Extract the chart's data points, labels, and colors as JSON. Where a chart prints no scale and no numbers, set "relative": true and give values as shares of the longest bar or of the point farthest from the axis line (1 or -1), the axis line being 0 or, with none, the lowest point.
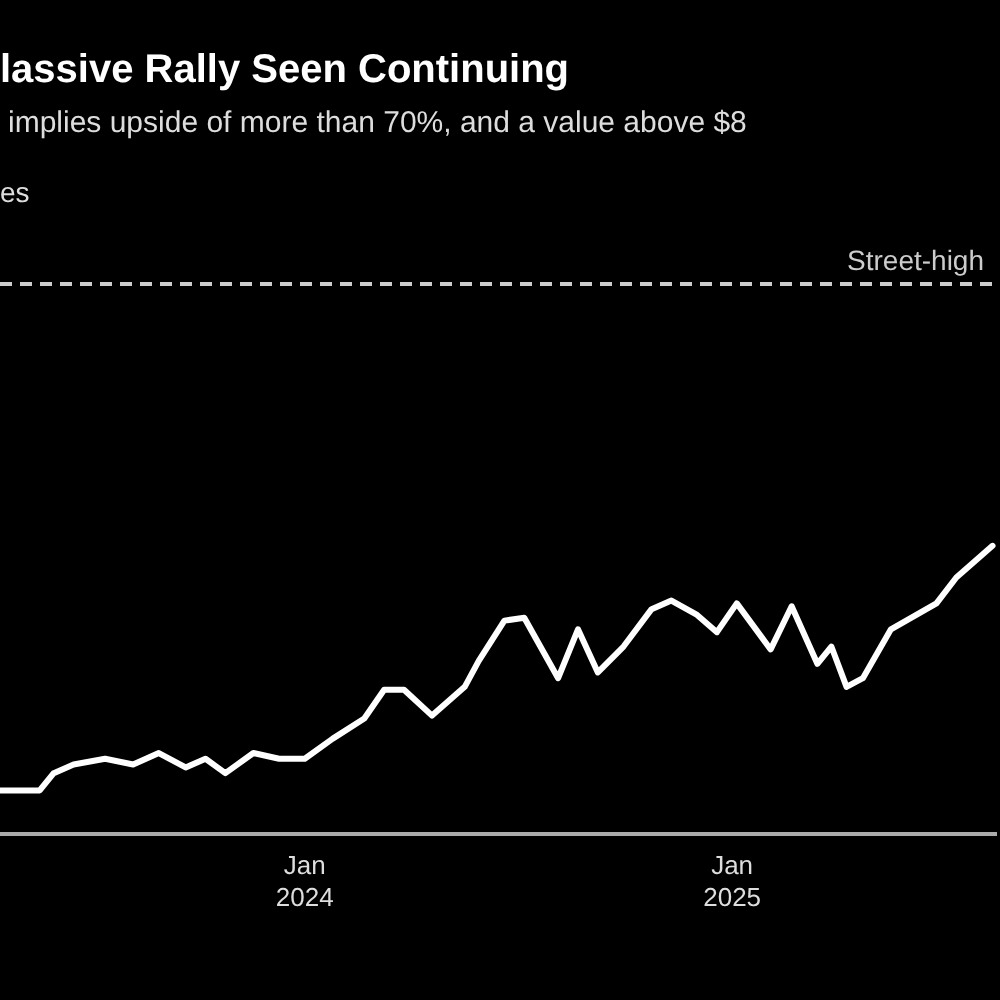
{
  "chart_data": {
    "type": "line",
    "title": "lassive Rally Seen Continuing",
    "subtitle": "implies upside of more than 70%, and a value above $8",
    "annotations": [
      "es"
    ],
    "relative": true,
    "legend": false,
    "tick_labels": "x",
    "marker": "none",
    "line_style": "solid",
    "x": [
      "2023-04-15",
      "2023-05-19",
      "2023-05-31",
      "2023-06-17",
      "2023-07-14",
      "2023-08-07",
      "2023-08-29",
      "2023-09-21",
      "2023-10-08",
      "2023-10-25",
      "2023-11-18",
      "2023-12-10",
      "2024-01-01",
      "2024-01-25",
      "2024-02-21",
      "2024-03-09",
      "2024-03-26",
      "2024-04-19",
      "2024-05-17",
      "2024-05-29",
      "2024-06-20",
      "2024-07-07",
      "2024-08-05",
      "2024-08-22",
      "2024-09-08",
      "2024-09-30",
      "2024-10-24",
      "2024-11-10",
      "2024-12-02",
      "2024-12-19",
      "2025-01-05",
      "2025-02-03",
      "2025-02-21",
      "2025-03-15",
      "2025-03-27",
      "2025-04-09",
      "2025-04-23",
      "2025-05-17",
      "2025-06-25",
      "2025-07-12",
      "2025-08-12"
    ],
    "xlim": [
      "2023-04-15",
      "2025-08-15"
    ],
    "xticks": [
      {
        "value": "2024-01-01",
        "label": "Jan 2024"
      },
      {
        "value": "2025-01-01",
        "label": "Jan 2025"
      }
    ],
    "series": [
      {
        "color": "#ffffff",
        "values": [
          0.15,
          0.15,
          0.21,
          0.24,
          0.26,
          0.24,
          0.28,
          0.23,
          0.26,
          0.21,
          0.28,
          0.26,
          0.26,
          0.33,
          0.4,
          0.5,
          0.5,
          0.41,
          0.51,
          0.6,
          0.74,
          0.75,
          0.54,
          0.71,
          0.56,
          0.65,
          0.78,
          0.81,
          0.76,
          0.7,
          0.8,
          0.64,
          0.79,
          0.59,
          0.65,
          0.51,
          0.54,
          0.71,
          0.8,
          0.89,
          1.0
        ]
      }
    ],
    "ref_lines": [
      {
        "axis": "y",
        "value": 1.91,
        "label": "Street-high",
        "color": "#cccccc",
        "line_style": "dashed"
      }
    ]
  }
}
